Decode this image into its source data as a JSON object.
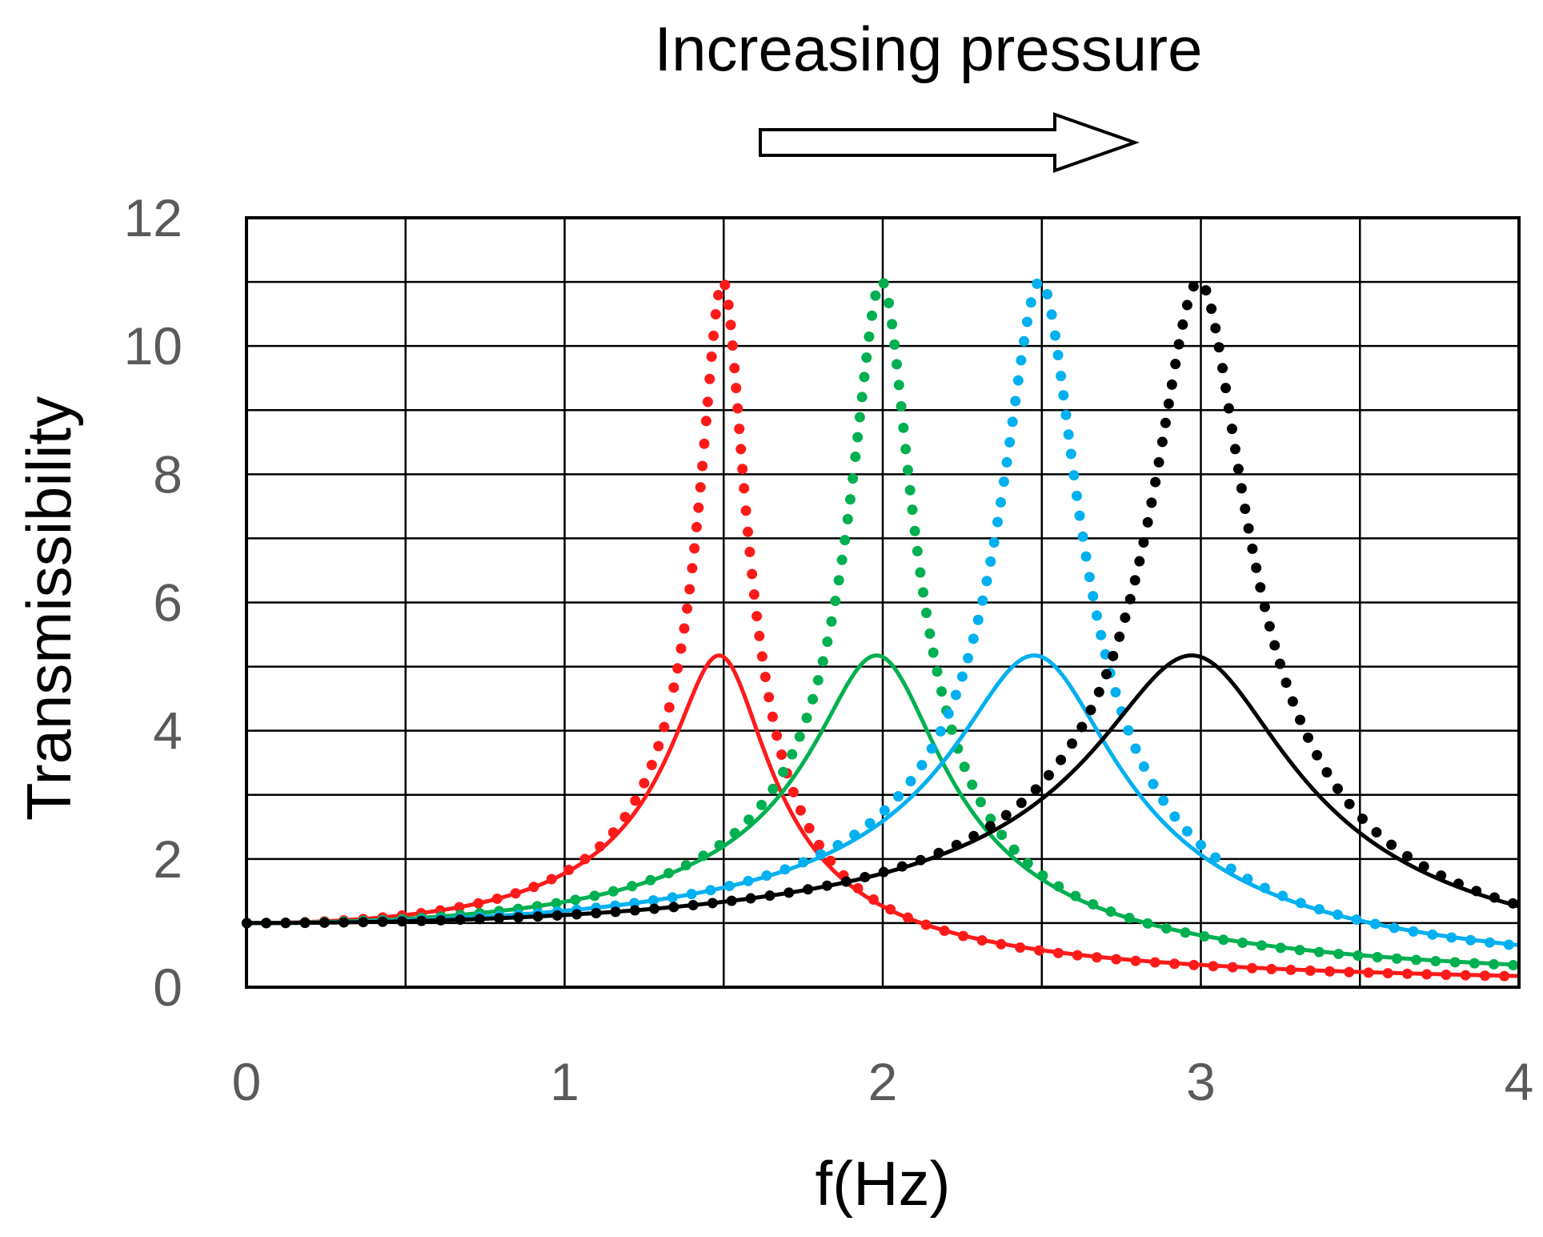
{
  "chart_data": {
    "type": "line",
    "title": "",
    "annotation": "Increasing pressure",
    "xlabel": "f(Hz)",
    "ylabel": "Transmissibility",
    "xlim": [
      0,
      4
    ],
    "ylim": [
      0,
      12
    ],
    "xticks": [
      0,
      1,
      2,
      3,
      4
    ],
    "yticks": [
      0,
      2,
      4,
      6,
      8,
      10,
      12
    ],
    "x_minor_grid": [
      0.5,
      1.5,
      2.5,
      3.5
    ],
    "y_minor_grid": [
      1,
      3,
      5,
      7,
      9,
      11
    ],
    "grid": true,
    "legend": "none",
    "series": [
      {
        "name": "solid-red",
        "style": "solid",
        "color": "#ff1a1a",
        "resonance_hz": 1.5,
        "peak": 5.15,
        "damping_ratio": 0.1
      },
      {
        "name": "dotted-red",
        "style": "dotted",
        "color": "#ff1a1a",
        "resonance_hz": 1.5,
        "peak": 11.0,
        "damping_ratio": 0.0456
      },
      {
        "name": "solid-green",
        "style": "solid",
        "color": "#00b050",
        "resonance_hz": 2.0,
        "peak": 5.15,
        "damping_ratio": 0.1
      },
      {
        "name": "dotted-green",
        "style": "dotted",
        "color": "#00b050",
        "resonance_hz": 2.0,
        "peak": 11.0,
        "damping_ratio": 0.0456
      },
      {
        "name": "solid-blue",
        "style": "solid",
        "color": "#00b0f0",
        "resonance_hz": 2.5,
        "peak": 5.15,
        "damping_ratio": 0.1
      },
      {
        "name": "dotted-blue",
        "style": "dotted",
        "color": "#00b0f0",
        "resonance_hz": 2.5,
        "peak": 11.0,
        "damping_ratio": 0.0456
      },
      {
        "name": "solid-black",
        "style": "solid",
        "color": "#000000",
        "resonance_hz": 3.0,
        "peak": 5.15,
        "damping_ratio": 0.1
      },
      {
        "name": "dotted-black",
        "style": "dotted",
        "color": "#000000",
        "resonance_hz": 3.0,
        "peak": 11.0,
        "damping_ratio": 0.0456
      }
    ]
  }
}
